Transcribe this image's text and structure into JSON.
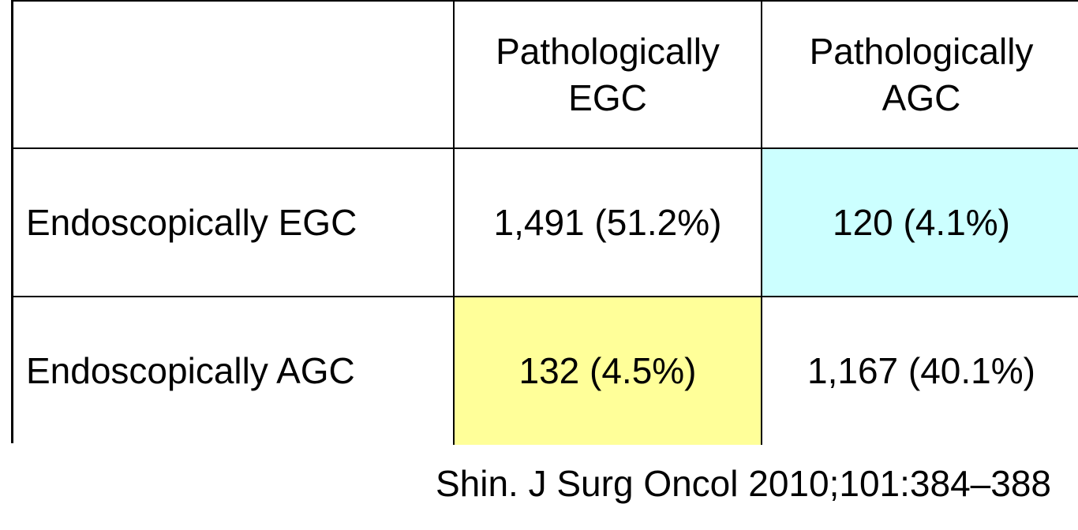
{
  "table": {
    "headers": {
      "blank": "",
      "col1": [
        "Pathologically",
        "EGC"
      ],
      "col2": [
        "Pathologically",
        "AGC"
      ]
    },
    "rows": [
      {
        "label": "Endoscopically EGC",
        "cells": [
          "1,491 (51.2%)",
          "120 (4.1%)"
        ]
      },
      {
        "label": "Endoscopically AGC",
        "cells": [
          "132 (4.5%)",
          "1,167 (40.1%)"
        ]
      }
    ],
    "highlight_colors": {
      "row1_col2": "#ccffff",
      "row2_col1": "#ffff99"
    }
  },
  "citation": "Shin. J Surg Oncol 2010;101:384–388"
}
